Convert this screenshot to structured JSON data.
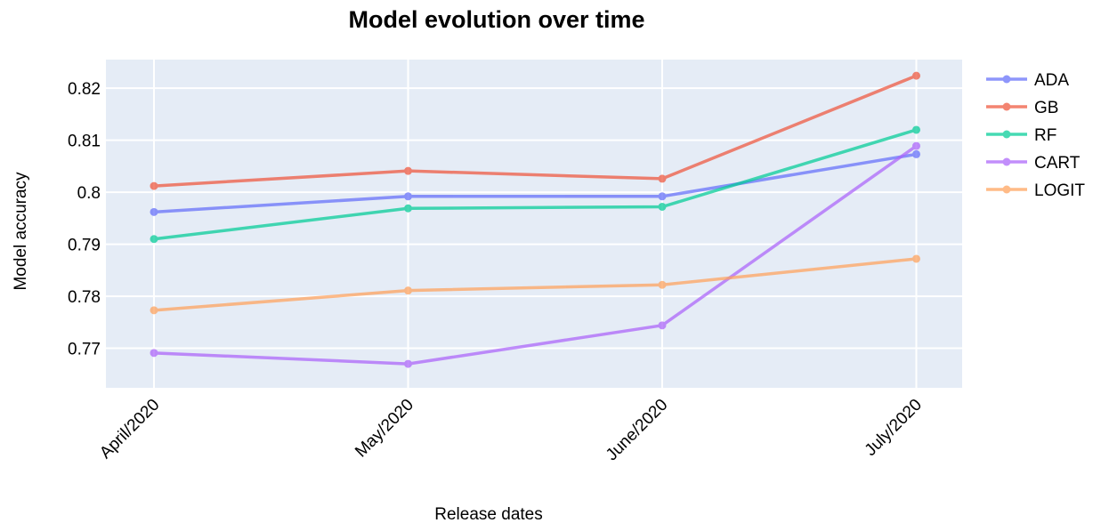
{
  "chart_data": {
    "type": "line",
    "title": "Model evolution over time",
    "xlabel": "Release dates",
    "ylabel": "Model accuracy",
    "categories": [
      "April/2020",
      "May/2020",
      "June/2020",
      "July/2020"
    ],
    "ylim": [
      0.7624,
      0.8255
    ],
    "yticks": [
      0.77,
      0.78,
      0.79,
      0.8,
      0.81,
      0.82
    ],
    "ytick_labels": [
      "0.77",
      "0.78",
      "0.79",
      "0.8",
      "0.81",
      "0.82"
    ],
    "grid": true,
    "legend_position": "right",
    "plot_background": "#e5ecf6",
    "series": [
      {
        "name": "ADA",
        "color": "#636efa",
        "values": [
          0.7962,
          0.7992,
          0.7992,
          0.8073
        ]
      },
      {
        "name": "GB",
        "color": "#ef553b",
        "values": [
          0.8012,
          0.8041,
          0.8026,
          0.8224
        ]
      },
      {
        "name": "RF",
        "color": "#00cc96",
        "values": [
          0.791,
          0.7969,
          0.7972,
          0.812
        ]
      },
      {
        "name": "CART",
        "color": "#ab63fa",
        "values": [
          0.7691,
          0.767,
          0.7744,
          0.8089
        ]
      },
      {
        "name": "LOGIT",
        "color": "#ffa15a",
        "values": [
          0.7773,
          0.7811,
          0.7822,
          0.7872
        ]
      }
    ]
  }
}
